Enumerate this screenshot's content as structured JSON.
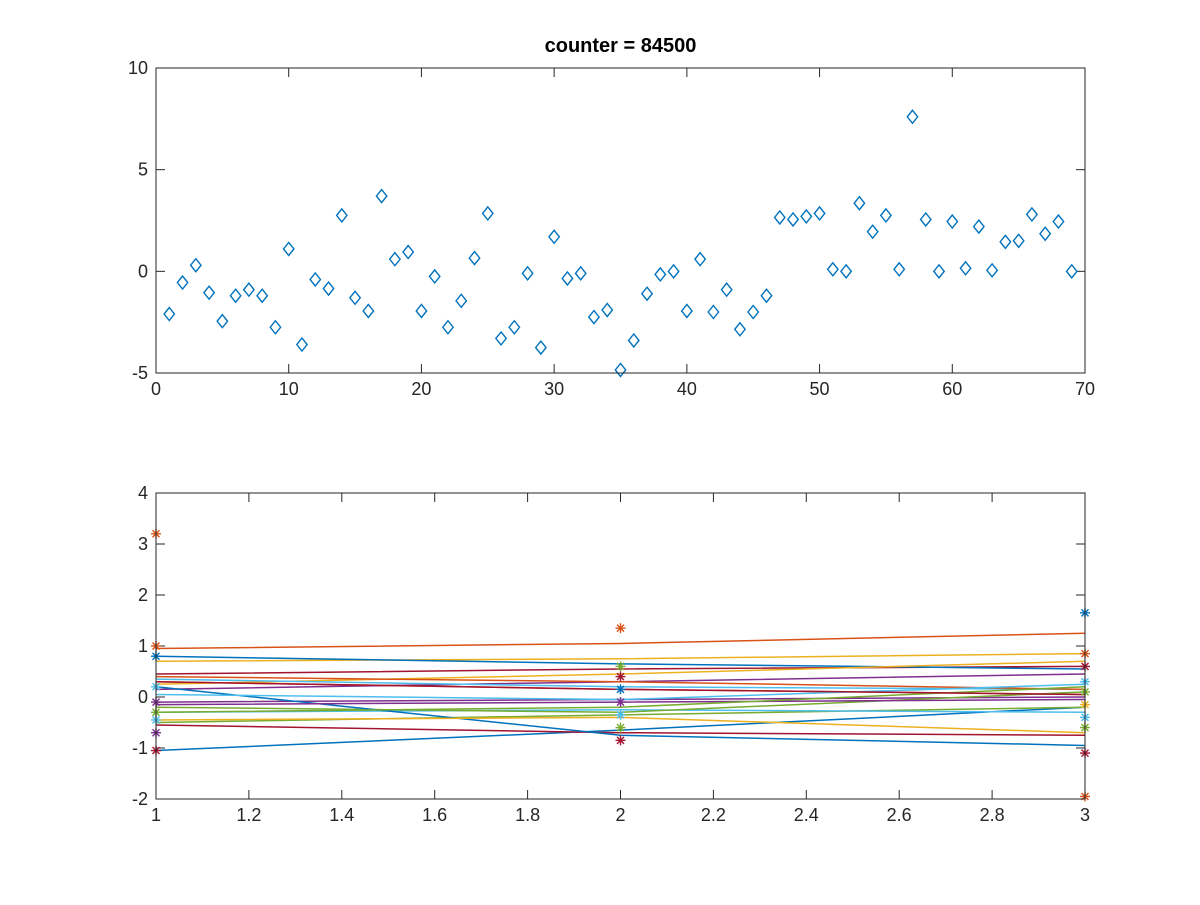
{
  "chart_data": [
    {
      "type": "scatter",
      "title": "counter = 84500",
      "xlabel": "",
      "ylabel": "",
      "xlim": [
        0,
        70
      ],
      "ylim": [
        -5,
        10
      ],
      "xticks": [
        "0",
        "10",
        "20",
        "30",
        "40",
        "50",
        "60",
        "70"
      ],
      "yticks": [
        "-5",
        "0",
        "5",
        "10"
      ],
      "grid": false,
      "legend": "none",
      "marker": "diamond",
      "color": "#0072BD",
      "x": [
        1,
        2,
        3,
        4,
        5,
        6,
        7,
        8,
        9,
        10,
        11,
        12,
        13,
        14,
        15,
        16,
        17,
        18,
        19,
        20,
        21,
        22,
        23,
        24,
        25,
        26,
        27,
        28,
        29,
        30,
        31,
        32,
        33,
        34,
        35,
        36,
        37,
        38,
        39,
        40,
        41,
        42,
        43,
        44,
        45,
        46,
        47,
        48,
        49,
        50,
        51,
        52,
        53,
        54,
        55,
        56,
        57,
        58,
        59,
        60,
        61,
        62,
        63,
        64,
        65,
        66,
        67,
        68,
        69
      ],
      "y": [
        -2.1,
        -0.55,
        0.3,
        -1.05,
        -2.45,
        -1.2,
        -0.9,
        -1.2,
        -2.75,
        1.1,
        -3.6,
        -0.4,
        -0.85,
        2.75,
        -1.3,
        -1.95,
        3.7,
        0.6,
        0.95,
        -1.95,
        -0.25,
        -2.75,
        -1.45,
        0.65,
        2.85,
        -3.3,
        -2.75,
        -0.1,
        -3.75,
        1.7,
        -0.35,
        -0.1,
        -2.25,
        -1.9,
        -4.85,
        -3.4,
        -1.1,
        -0.15,
        0.0,
        -1.95,
        0.6,
        -2.0,
        -0.9,
        -2.85,
        -2.0,
        -1.2,
        2.65,
        2.55,
        2.7,
        2.85,
        0.1,
        0.0,
        3.35,
        1.95,
        2.75,
        0.1,
        7.6,
        2.55,
        0.0,
        2.45,
        0.15,
        2.2,
        0.05,
        1.45,
        1.5,
        2.8,
        1.85,
        2.45,
        0.0
      ]
    },
    {
      "type": "line",
      "title": "",
      "xlabel": "",
      "ylabel": "",
      "xlim": [
        1,
        3
      ],
      "ylim": [
        -2,
        4
      ],
      "xticks": [
        "1",
        "1.2",
        "1.4",
        "1.6",
        "1.8",
        "2",
        "2.2",
        "2.4",
        "2.6",
        "2.8",
        "3"
      ],
      "yticks": [
        "-2",
        "-1",
        "0",
        "1",
        "2",
        "3",
        "4"
      ],
      "grid": false,
      "legend": "none",
      "x": [
        1,
        2,
        3
      ],
      "colors": [
        "#0072BD",
        "#D95319",
        "#EDB120",
        "#7E2F8E",
        "#77AC30",
        "#4DBEEE",
        "#A2142F"
      ],
      "lines": [
        {
          "color": "#0072BD",
          "values": [
            -1.05,
            -0.65,
            -0.2
          ]
        },
        {
          "color": "#D95319",
          "values": [
            0.95,
            1.05,
            1.25
          ]
        },
        {
          "color": "#EDB120",
          "values": [
            0.7,
            0.75,
            0.85
          ]
        },
        {
          "color": "#7E2F8E",
          "values": [
            0.15,
            0.3,
            0.45
          ]
        },
        {
          "color": "#77AC30",
          "values": [
            -0.5,
            -0.35,
            -0.2
          ]
        },
        {
          "color": "#4DBEEE",
          "values": [
            -0.3,
            -0.25,
            -0.3
          ]
        },
        {
          "color": "#A2142F",
          "values": [
            0.45,
            0.55,
            0.6
          ]
        },
        {
          "color": "#0072BD",
          "values": [
            0.8,
            0.65,
            0.55
          ]
        },
        {
          "color": "#D95319",
          "values": [
            0.3,
            0.15,
            0.05
          ]
        },
        {
          "color": "#EDB120",
          "values": [
            0.25,
            0.45,
            0.7
          ]
        },
        {
          "color": "#7E2F8E",
          "values": [
            -0.1,
            -0.05,
            0.0
          ]
        },
        {
          "color": "#77AC30",
          "values": [
            -0.2,
            -0.3,
            0.1
          ]
        },
        {
          "color": "#4DBEEE",
          "values": [
            0.35,
            0.2,
            0.15
          ]
        },
        {
          "color": "#A2142F",
          "values": [
            -0.55,
            -0.7,
            -0.75
          ]
        },
        {
          "color": "#0072BD",
          "values": [
            0.2,
            -0.75,
            -0.95
          ]
        },
        {
          "color": "#D95319",
          "values": [
            0.4,
            0.3,
            0.15
          ]
        },
        {
          "color": "#EDB120",
          "values": [
            -0.45,
            -0.4,
            -0.7
          ]
        },
        {
          "color": "#7E2F8E",
          "values": [
            -0.15,
            -0.1,
            -0.05
          ]
        },
        {
          "color": "#77AC30",
          "values": [
            -0.3,
            -0.2,
            0.2
          ]
        },
        {
          "color": "#4DBEEE",
          "values": [
            0.05,
            -0.05,
            0.25
          ]
        },
        {
          "color": "#A2142F",
          "values": [
            0.3,
            0.15,
            0.05
          ]
        }
      ],
      "markers": [
        {
          "x": 1,
          "y": 3.2,
          "color": "#D95319"
        },
        {
          "x": 1,
          "y": 1.0,
          "color": "#D95319"
        },
        {
          "x": 1,
          "y": 0.8,
          "color": "#0072BD"
        },
        {
          "x": 1,
          "y": 0.2,
          "color": "#4DBEEE"
        },
        {
          "x": 1,
          "y": -0.1,
          "color": "#7E2F8E"
        },
        {
          "x": 1,
          "y": -0.3,
          "color": "#77AC30"
        },
        {
          "x": 1,
          "y": -0.45,
          "color": "#4DBEEE"
        },
        {
          "x": 1,
          "y": -0.7,
          "color": "#7E2F8E"
        },
        {
          "x": 1,
          "y": -1.05,
          "color": "#A2142F"
        },
        {
          "x": 2,
          "y": 1.35,
          "color": "#D95319"
        },
        {
          "x": 2,
          "y": 0.6,
          "color": "#77AC30"
        },
        {
          "x": 2,
          "y": 0.4,
          "color": "#A2142F"
        },
        {
          "x": 2,
          "y": 0.15,
          "color": "#0072BD"
        },
        {
          "x": 2,
          "y": -0.1,
          "color": "#7E2F8E"
        },
        {
          "x": 2,
          "y": -0.35,
          "color": "#4DBEEE"
        },
        {
          "x": 2,
          "y": -0.6,
          "color": "#77AC30"
        },
        {
          "x": 2,
          "y": -0.85,
          "color": "#A2142F"
        },
        {
          "x": 3,
          "y": 1.65,
          "color": "#0072BD"
        },
        {
          "x": 3,
          "y": 0.85,
          "color": "#D95319"
        },
        {
          "x": 3,
          "y": 0.6,
          "color": "#A2142F"
        },
        {
          "x": 3,
          "y": 0.3,
          "color": "#4DBEEE"
        },
        {
          "x": 3,
          "y": 0.1,
          "color": "#77AC30"
        },
        {
          "x": 3,
          "y": -0.15,
          "color": "#EDB120"
        },
        {
          "x": 3,
          "y": -0.4,
          "color": "#4DBEEE"
        },
        {
          "x": 3,
          "y": -0.6,
          "color": "#77AC30"
        },
        {
          "x": 3,
          "y": -1.1,
          "color": "#A2142F"
        },
        {
          "x": 3,
          "y": -1.95,
          "color": "#D95319"
        }
      ]
    }
  ]
}
